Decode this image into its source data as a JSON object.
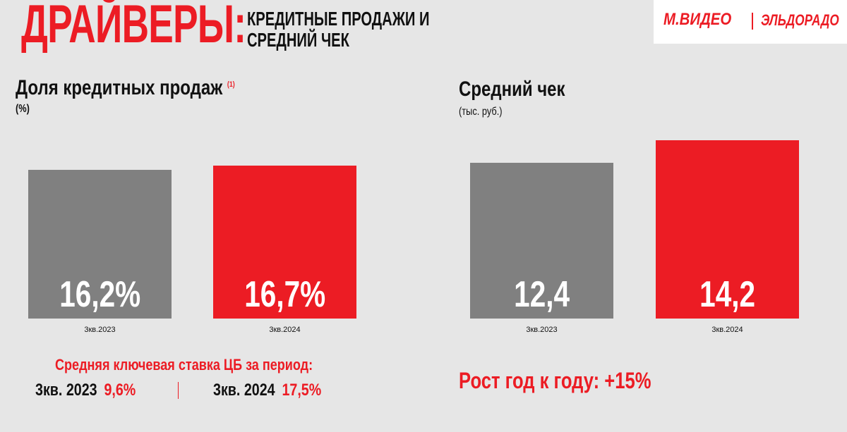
{
  "header": {
    "title": "ДРАЙВЕРЫ:",
    "subtitle_line1": "КРЕДИТНЫЕ ПРОДАЖИ И",
    "subtitle_line2": "СРЕДНИЙ ЧЕК",
    "logo_left": "М.ВИДЕО",
    "logo_right": "ЭЛЬДОРАДО"
  },
  "colors": {
    "accent": "#ec1c24",
    "gray_bar": "#808080",
    "background": "#e6e6e6"
  },
  "credit_panel": {
    "title": "Доля кредитных продаж",
    "footnote": "(1)",
    "unit": "(%)"
  },
  "check_panel": {
    "title": "Средний чек",
    "unit": "(тыс. руб.)"
  },
  "rates": {
    "title": "Средняя ключевая ставка ЦБ за период:",
    "items": [
      {
        "label": "3кв. 2023",
        "value": "9,6%"
      },
      {
        "label": "3кв. 2024",
        "value": "17,5%"
      }
    ]
  },
  "growth": {
    "text": "Рост год к году: +15%"
  },
  "chart_data": [
    {
      "type": "bar",
      "title": "Доля кредитных продаж",
      "ylabel": "(%)",
      "categories": [
        "3кв.2023",
        "3кв.2024"
      ],
      "values": [
        16.2,
        16.7
      ],
      "value_labels": [
        "16,2%",
        "16,7%"
      ],
      "bar_colors": [
        "#808080",
        "#ec1c24"
      ],
      "grid": false
    },
    {
      "type": "bar",
      "title": "Средний чек",
      "ylabel": "(тыс. руб.)",
      "categories": [
        "3кв.2023",
        "3кв.2024"
      ],
      "values": [
        12.4,
        14.2
      ],
      "value_labels": [
        "12,4",
        "14,2"
      ],
      "bar_colors": [
        "#808080",
        "#ec1c24"
      ],
      "grid": false
    }
  ]
}
